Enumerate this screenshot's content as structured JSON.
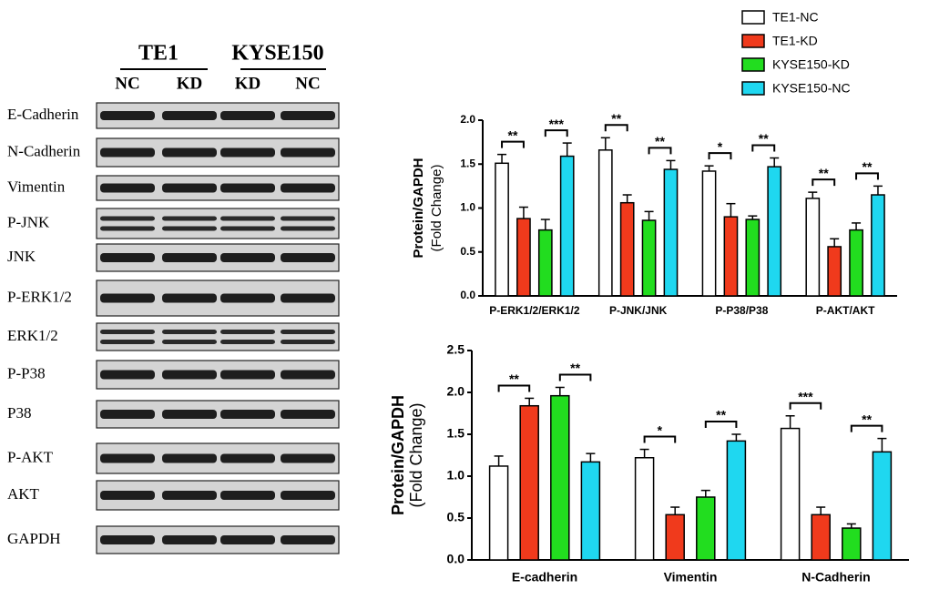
{
  "blot": {
    "groups": [
      {
        "label": "TE1",
        "lanes": [
          0,
          1
        ]
      },
      {
        "label": "KYSE150",
        "lanes": [
          2,
          3
        ]
      }
    ],
    "lanes": [
      "NC",
      "KD",
      "KD",
      "NC"
    ],
    "proteins": [
      "E-Cadherin",
      "N-Cadherin",
      "Vimentin",
      "P-JNK",
      "JNK",
      "P-ERK1/2",
      "ERK1/2",
      "P-P38",
      "P38",
      "P-AKT",
      "AKT",
      "GAPDH"
    ]
  },
  "chart_data": [
    {
      "type": "bar",
      "ylabel": [
        "Protein/GAPDH",
        "(Fold Change)"
      ],
      "categories": [
        "P-ERK1/2/ERK1/2",
        "P-JNK/JNK",
        "P-P38/P38",
        "P-AKT/AKT"
      ],
      "series": [
        {
          "name": "TE1-NC",
          "color": "#ffffff",
          "values": [
            1.51,
            1.66,
            1.42,
            1.11
          ],
          "errors": [
            0.1,
            0.14,
            0.06,
            0.07
          ]
        },
        {
          "name": "TE1-KD",
          "color": "#f03a1c",
          "values": [
            0.88,
            1.06,
            0.9,
            0.56
          ],
          "errors": [
            0.13,
            0.09,
            0.15,
            0.09
          ]
        },
        {
          "name": "KYSE150-KD",
          "color": "#22dd1f",
          "values": [
            0.75,
            0.86,
            0.87,
            0.75
          ],
          "errors": [
            0.12,
            0.1,
            0.04,
            0.08
          ]
        },
        {
          "name": "KYSE150-NC",
          "color": "#1fd7f0",
          "values": [
            1.59,
            1.44,
            1.47,
            1.15
          ],
          "errors": [
            0.15,
            0.1,
            0.1,
            0.1
          ]
        }
      ],
      "ylim": [
        0,
        2
      ],
      "yticks": [
        {
          "value": 0,
          "label": "0.0"
        },
        {
          "value": 0.5,
          "label": "0.5"
        },
        {
          "value": 1,
          "label": "1.0"
        },
        {
          "value": 1.5,
          "label": "1.5"
        },
        {
          "value": 2,
          "label": "2.0"
        }
      ],
      "annotations": [
        {
          "category": 0,
          "series": [
            0,
            1
          ],
          "text": "**"
        },
        {
          "category": 0,
          "series": [
            2,
            3
          ],
          "text": "***"
        },
        {
          "category": 1,
          "series": [
            0,
            1
          ],
          "text": "**"
        },
        {
          "category": 1,
          "series": [
            2,
            3
          ],
          "text": "**"
        },
        {
          "category": 2,
          "series": [
            0,
            1
          ],
          "text": "*"
        },
        {
          "category": 2,
          "series": [
            2,
            3
          ],
          "text": "**"
        },
        {
          "category": 3,
          "series": [
            0,
            1
          ],
          "text": "**"
        },
        {
          "category": 3,
          "series": [
            2,
            3
          ],
          "text": "**"
        }
      ]
    },
    {
      "type": "bar",
      "ylabel": [
        "Protein/GAPDH",
        "(Fold Change)"
      ],
      "categories": [
        "E-cadherin",
        "Vimentin",
        "N-Cadherin"
      ],
      "series": [
        {
          "color": "#ffffff",
          "values": [
            1.12,
            1.22,
            1.57
          ],
          "errors": [
            0.12,
            0.1,
            0.15
          ]
        },
        {
          "color": "#f03a1c",
          "values": [
            1.84,
            0.54,
            0.54
          ],
          "errors": [
            0.09,
            0.09,
            0.09
          ]
        },
        {
          "color": "#22dd1f",
          "values": [
            1.96,
            0.75,
            0.38
          ],
          "errors": [
            0.1,
            0.08,
            0.05
          ]
        },
        {
          "color": "#1fd7f0",
          "values": [
            1.17,
            1.42,
            1.29
          ],
          "errors": [
            0.1,
            0.08,
            0.16
          ]
        }
      ],
      "ylim": [
        0,
        2.5
      ],
      "yticks": [
        {
          "value": 0,
          "label": "0.0"
        },
        {
          "value": 0.5,
          "label": "0.5"
        },
        {
          "value": 1,
          "label": "1.0"
        },
        {
          "value": 1.5,
          "label": "1.5"
        },
        {
          "value": 2,
          "label": "2.0"
        },
        {
          "value": 2.5,
          "label": "2.5"
        }
      ],
      "annotations": [
        {
          "category": 0,
          "series": [
            0,
            1
          ],
          "text": "**"
        },
        {
          "category": 0,
          "series": [
            2,
            3
          ],
          "text": "**"
        },
        {
          "category": 1,
          "series": [
            0,
            1
          ],
          "text": "*"
        },
        {
          "category": 1,
          "series": [
            2,
            3
          ],
          "text": "**"
        },
        {
          "category": 2,
          "series": [
            0,
            1
          ],
          "text": "***"
        },
        {
          "category": 2,
          "series": [
            2,
            3
          ],
          "text": "**"
        }
      ]
    }
  ]
}
